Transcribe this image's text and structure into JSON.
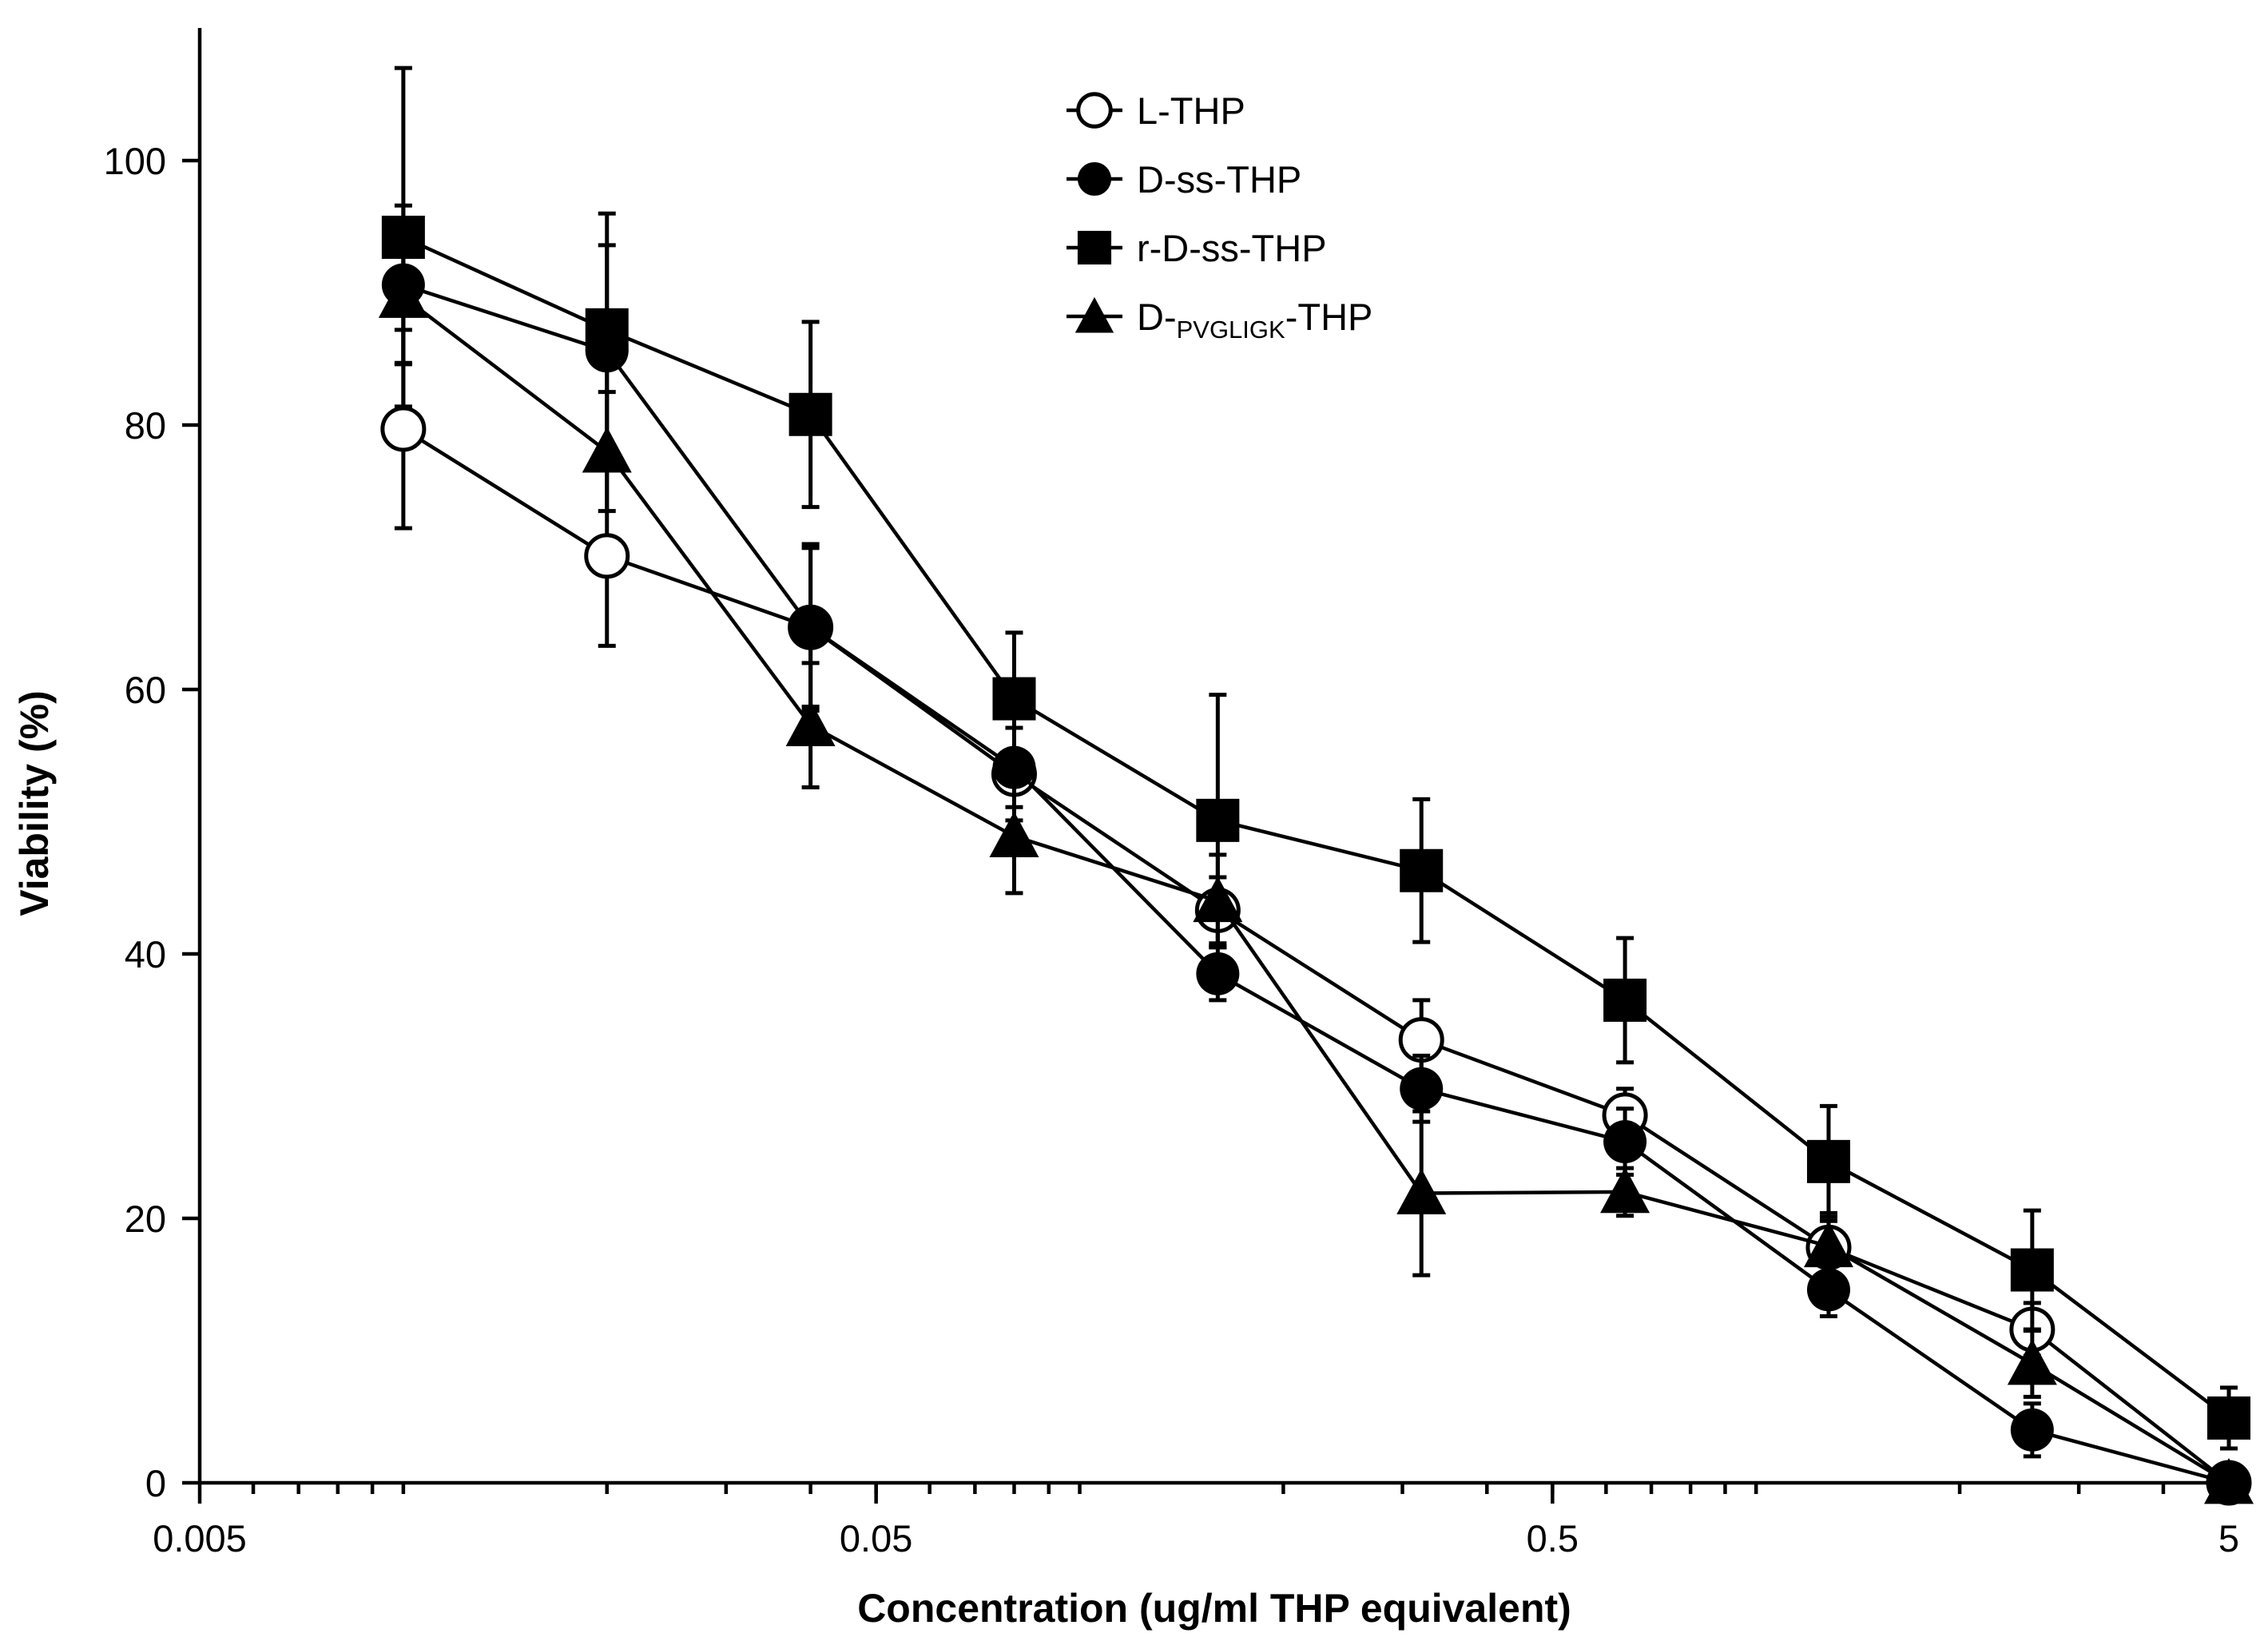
{
  "chart_data": {
    "type": "line",
    "title": "",
    "xlabel": "Concentration (ug/ml THP equivalent)",
    "ylabel": "Viability (%)",
    "x_scale": "log",
    "xlim": [
      0.005,
      5
    ],
    "ylim": [
      0,
      110
    ],
    "x_tick_labels": [
      "0.005",
      "0.05",
      "0.5",
      "5"
    ],
    "y_tick_labels": [
      "0",
      "20",
      "40",
      "60",
      "80",
      "100"
    ],
    "grid": false,
    "legend_position": "top-center",
    "x": [
      0.01,
      0.02,
      0.04,
      0.08,
      0.16,
      0.32,
      0.64,
      1.28,
      2.56,
      5
    ],
    "series": [
      {
        "name": "L-THP",
        "marker": "open-circle",
        "values": [
          79.7,
          70.1,
          64.7,
          53.6,
          43.3,
          33.5,
          27.8,
          17.8,
          11.6,
          0.0
        ],
        "errors": [
          7.5,
          6.8,
          6.0,
          3.5,
          2.5,
          3.0,
          2.0,
          2.0,
          2.0,
          1.0
        ]
      },
      {
        "name": "D-ss-THP",
        "marker": "filled-circle",
        "values": [
          90.6,
          85.6,
          64.7,
          54.1,
          38.5,
          29.8,
          25.8,
          14.6,
          4.0,
          0.0
        ],
        "errors": [
          6.0,
          8.0,
          6.3,
          3.0,
          2.0,
          2.5,
          2.5,
          2.0,
          2.0,
          1.0
        ]
      },
      {
        "name": "r-D-ss-THP",
        "marker": "filled-square",
        "values": [
          94.2,
          87.2,
          80.8,
          59.3,
          50.1,
          46.3,
          36.5,
          24.3,
          16.1,
          4.9
        ],
        "errors": [
          12.8,
          8.8,
          7.0,
          5.0,
          9.5,
          5.4,
          4.7,
          4.2,
          4.5,
          2.3
        ]
      },
      {
        "name": "D-PVGLIGK-THP",
        "name_prefix": "D-",
        "name_subscript": "PVGLIGK",
        "name_suffix": "-THP",
        "marker": "filled-triangle",
        "values": [
          89.7,
          78.0,
          57.3,
          48.9,
          44.0,
          21.9,
          22.0,
          17.9,
          9.0,
          0.0
        ],
        "errors": [
          5.0,
          4.5,
          4.7,
          4.3,
          3.5,
          6.2,
          1.8,
          2.5,
          2.5,
          1.0
        ]
      }
    ]
  }
}
